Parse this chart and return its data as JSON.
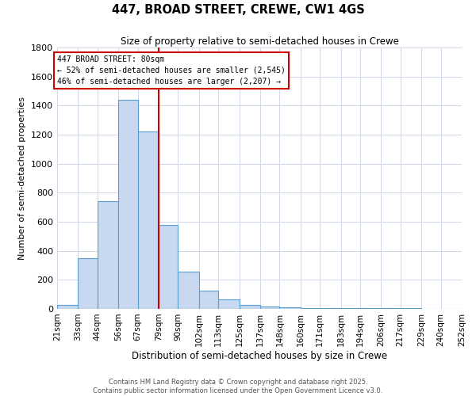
{
  "title": "447, BROAD STREET, CREWE, CW1 4GS",
  "subtitle": "Size of property relative to semi-detached houses in Crewe",
  "xlabel": "Distribution of semi-detached houses by size in Crewe",
  "ylabel": "Number of semi-detached properties",
  "bin_labels": [
    "21sqm",
    "33sqm",
    "44sqm",
    "56sqm",
    "67sqm",
    "79sqm",
    "90sqm",
    "102sqm",
    "113sqm",
    "125sqm",
    "137sqm",
    "148sqm",
    "160sqm",
    "171sqm",
    "183sqm",
    "194sqm",
    "206sqm",
    "217sqm",
    "229sqm",
    "240sqm",
    "252sqm"
  ],
  "bin_edges": [
    21,
    33,
    44,
    56,
    67,
    79,
    90,
    102,
    113,
    125,
    137,
    148,
    160,
    171,
    183,
    194,
    206,
    217,
    229,
    240,
    252
  ],
  "bar_heights": [
    30,
    350,
    740,
    1440,
    1220,
    580,
    255,
    125,
    65,
    30,
    15,
    10,
    5,
    5,
    5,
    3,
    3,
    3,
    2,
    2
  ],
  "bar_color": "#c8d8f0",
  "bar_edge_color": "#5a9fd4",
  "vline_x": 79,
  "vline_color": "#cc0000",
  "annotation_title": "447 BROAD STREET: 80sqm",
  "annotation_line1": "← 52% of semi-detached houses are smaller (2,545)",
  "annotation_line2": "46% of semi-detached houses are larger (2,207) →",
  "annotation_box_color": "#ffffff",
  "annotation_box_edge": "#cc0000",
  "ylim": [
    0,
    1800
  ],
  "yticks": [
    0,
    200,
    400,
    600,
    800,
    1000,
    1200,
    1400,
    1600,
    1800
  ],
  "footer1": "Contains HM Land Registry data © Crown copyright and database right 2025.",
  "footer2": "Contains public sector information licensed under the Open Government Licence v3.0.",
  "background_color": "#ffffff",
  "grid_color": "#d0d8e8"
}
